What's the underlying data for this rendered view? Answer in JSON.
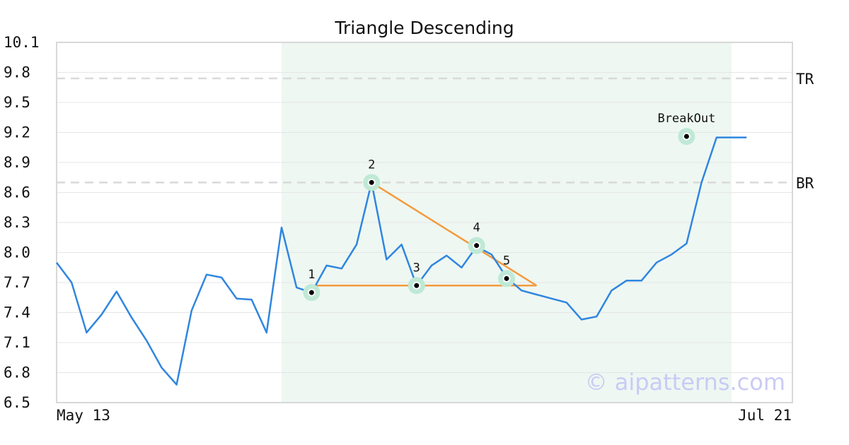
{
  "chart_data": {
    "type": "line",
    "title": "Triangle Descending",
    "xlabel": "",
    "ylabel": "",
    "ylim": [
      6.5,
      10.1
    ],
    "y_ticks": [
      "6.5",
      "6.8",
      "7.1",
      "7.4",
      "7.7",
      "8.0",
      "8.3",
      "8.6",
      "8.9",
      "9.2",
      "9.5",
      "9.8",
      "10.1"
    ],
    "x_tick_labels": [
      {
        "index": 0,
        "label": "May 13"
      },
      {
        "index": 45,
        "label": "Jul 21"
      }
    ],
    "grid": true,
    "series": [
      {
        "name": "",
        "color": "#2f86e0",
        "values": [
          7.9,
          7.7,
          7.2,
          7.38,
          7.61,
          7.35,
          7.12,
          6.85,
          6.68,
          7.42,
          7.78,
          7.75,
          7.54,
          7.53,
          7.2,
          8.25,
          7.65,
          7.6,
          7.87,
          7.84,
          8.08,
          8.7,
          7.93,
          8.08,
          7.67,
          7.87,
          7.97,
          7.85,
          8.06,
          7.98,
          7.75,
          7.62,
          7.58,
          7.54,
          7.5,
          7.33,
          7.36,
          7.62,
          7.72,
          7.72,
          7.9,
          7.98,
          8.09,
          8.7,
          9.15,
          9.15,
          9.15
        ]
      }
    ],
    "highlight_range": {
      "from_index": 15,
      "to_index": 45,
      "color": "#eef7f2"
    },
    "reference_lines": [
      {
        "label": "TR",
        "value": 9.74,
        "color": "#d9d9d9"
      },
      {
        "label": "BR",
        "value": 8.7,
        "color": "#d9d9d9"
      }
    ],
    "pattern_lines": [
      {
        "from": {
          "index": 17,
          "value": 7.67
        },
        "to": {
          "index": 32,
          "value": 7.67
        },
        "color": "#f59a3c"
      },
      {
        "from": {
          "index": 21,
          "value": 8.7
        },
        "to": {
          "index": 32,
          "value": 7.67
        },
        "color": "#f59a3c"
      }
    ],
    "points": [
      {
        "label": "1",
        "index": 17,
        "value": 7.6
      },
      {
        "label": "2",
        "index": 21,
        "value": 8.7
      },
      {
        "label": "3",
        "index": 24,
        "value": 7.67
      },
      {
        "label": "4",
        "index": 28,
        "value": 8.07
      },
      {
        "label": "5",
        "index": 30,
        "value": 7.74
      },
      {
        "label": "BreakOut",
        "index": 42,
        "value": 9.16
      }
    ],
    "annotations": [
      "© aipatterns.com"
    ]
  }
}
